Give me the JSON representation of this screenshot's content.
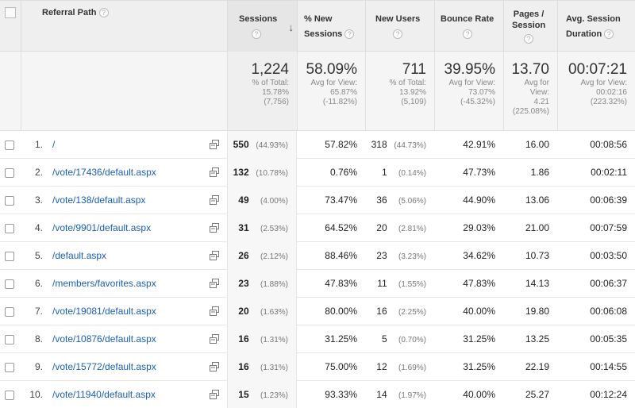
{
  "header": {
    "referral_path": "Referral Path",
    "sessions": "Sessions",
    "pct_new_sessions_1": "% New",
    "pct_new_sessions_2": "Sessions",
    "new_users": "New Users",
    "bounce_rate": "Bounce Rate",
    "pages_session_1": "Pages /",
    "pages_session_2": "Session",
    "avg_session_1": "Avg. Session",
    "avg_session_2": "Duration",
    "help_glyph": "?",
    "sort_glyph": "↓"
  },
  "totals": {
    "sessions": {
      "value": "1,224",
      "l1": "% of Total:",
      "l2": "15.78%",
      "l3": "(7,756)"
    },
    "pct_new": {
      "value": "58.09%",
      "l1": "Avg for View:",
      "l2": "65.87%",
      "l3": "(-11.82%)"
    },
    "new_users": {
      "value": "711",
      "l1": "% of Total:",
      "l2": "13.92%",
      "l3": "(5,109)"
    },
    "bounce": {
      "value": "39.95%",
      "l1": "Avg for View:",
      "l2": "73.07%",
      "l3": "(-45.32%)"
    },
    "pages": {
      "value": "13.70",
      "l1": "Avg for",
      "l2": "View:",
      "l3": "4.21",
      "l4": "(225.08%)"
    },
    "duration": {
      "value": "00:07:21",
      "l1": "Avg for View:",
      "l2": "00:02:16",
      "l3": "(223.32%)"
    }
  },
  "rows": [
    {
      "idx": "1.",
      "path": "/",
      "sessions": "550",
      "sessions_pct": "(44.93%)",
      "pct_new": "57.82%",
      "new_users": "318",
      "new_users_pct": "(44.73%)",
      "bounce": "42.91%",
      "pages": "16.00",
      "duration": "00:08:56"
    },
    {
      "idx": "2.",
      "path": "/vote/17436/default.aspx",
      "sessions": "132",
      "sessions_pct": "(10.78%)",
      "pct_new": "0.76%",
      "new_users": "1",
      "new_users_pct": "(0.14%)",
      "bounce": "47.73%",
      "pages": "1.86",
      "duration": "00:02:11"
    },
    {
      "idx": "3.",
      "path": "/vote/138/default.aspx",
      "sessions": "49",
      "sessions_pct": "(4.00%)",
      "pct_new": "73.47%",
      "new_users": "36",
      "new_users_pct": "(5.06%)",
      "bounce": "44.90%",
      "pages": "13.06",
      "duration": "00:06:39"
    },
    {
      "idx": "4.",
      "path": "/vote/9901/default.aspx",
      "sessions": "31",
      "sessions_pct": "(2.53%)",
      "pct_new": "64.52%",
      "new_users": "20",
      "new_users_pct": "(2.81%)",
      "bounce": "29.03%",
      "pages": "21.00",
      "duration": "00:07:59"
    },
    {
      "idx": "5.",
      "path": "/default.aspx",
      "sessions": "26",
      "sessions_pct": "(2.12%)",
      "pct_new": "88.46%",
      "new_users": "23",
      "new_users_pct": "(3.23%)",
      "bounce": "34.62%",
      "pages": "10.73",
      "duration": "00:03:50"
    },
    {
      "idx": "6.",
      "path": "/members/favorites.aspx",
      "sessions": "23",
      "sessions_pct": "(1.88%)",
      "pct_new": "47.83%",
      "new_users": "11",
      "new_users_pct": "(1.55%)",
      "bounce": "47.83%",
      "pages": "14.13",
      "duration": "00:06:37"
    },
    {
      "idx": "7.",
      "path": "/vote/19081/default.aspx",
      "sessions": "20",
      "sessions_pct": "(1.63%)",
      "pct_new": "80.00%",
      "new_users": "16",
      "new_users_pct": "(2.25%)",
      "bounce": "40.00%",
      "pages": "19.80",
      "duration": "00:06:08"
    },
    {
      "idx": "8.",
      "path": "/vote/10876/default.aspx",
      "sessions": "16",
      "sessions_pct": "(1.31%)",
      "pct_new": "31.25%",
      "new_users": "5",
      "new_users_pct": "(0.70%)",
      "bounce": "31.25%",
      "pages": "13.25",
      "duration": "00:05:35"
    },
    {
      "idx": "9.",
      "path": "/vote/15772/default.aspx",
      "sessions": "16",
      "sessions_pct": "(1.31%)",
      "pct_new": "75.00%",
      "new_users": "12",
      "new_users_pct": "(1.69%)",
      "bounce": "31.25%",
      "pages": "22.19",
      "duration": "00:14:55"
    },
    {
      "idx": "10.",
      "path": "/vote/11940/default.aspx",
      "sessions": "15",
      "sessions_pct": "(1.23%)",
      "pct_new": "93.33%",
      "new_users": "14",
      "new_users_pct": "(1.97%)",
      "bounce": "40.00%",
      "pages": "25.27",
      "duration": "00:12:24"
    }
  ],
  "colors": {
    "link": "#1a5fb4",
    "header_bg": "#efefef",
    "totals_bg": "#f5f5f5"
  },
  "icons": {
    "help": "question-circle-icon",
    "sort": "sort-down-arrow-icon",
    "open": "open-in-new-window-icon"
  }
}
